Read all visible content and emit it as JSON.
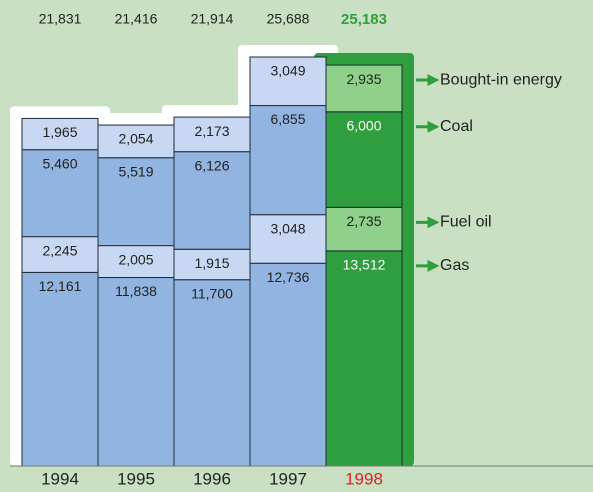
{
  "chart_data": {
    "type": "stacked_bar",
    "categories": [
      "1994",
      "1995",
      "1996",
      "1997",
      "1998"
    ],
    "category_colors": [
      "#222222",
      "#222222",
      "#222222",
      "#222222",
      "#d9232a"
    ],
    "totals": [
      21831,
      21416,
      21914,
      25688,
      25183
    ],
    "total_labels": [
      "21,831",
      "21,416",
      "21,914",
      "25,688",
      "25,183"
    ],
    "total_colors": [
      "#222222",
      "#222222",
      "#222222",
      "#222222",
      "#2e9e3e"
    ],
    "series": [
      {
        "name": "Gas",
        "colors": [
          "#92b4e0",
          "#92b4e0",
          "#92b4e0",
          "#92b4e0",
          "#2e9e3e"
        ],
        "values": [
          12161,
          11838,
          11700,
          12736,
          13512
        ],
        "value_labels": [
          "12,161",
          "11,838",
          "11,700",
          "12,736",
          "13,512"
        ]
      },
      {
        "name": "Fuel oil",
        "colors": [
          "#c8d8f2",
          "#c8d8f2",
          "#c8d8f2",
          "#c8d8f2",
          "#8fd08a"
        ],
        "values": [
          2245,
          2005,
          1915,
          3048,
          2735
        ],
        "value_labels": [
          "2,245",
          "2,005",
          "1,915",
          "3,048",
          "2,735"
        ]
      },
      {
        "name": "Coal",
        "colors": [
          "#92b4e0",
          "#92b4e0",
          "#92b4e0",
          "#92b4e0",
          "#2e9e3e"
        ],
        "values": [
          5460,
          5519,
          6126,
          6855,
          6000
        ],
        "value_labels": [
          "5,460",
          "5,519",
          "6,126",
          "6,855",
          "6,000"
        ]
      },
      {
        "name": "Bought-in energy",
        "colors": [
          "#c8d8f2",
          "#c8d8f2",
          "#c8d8f2",
          "#c8d8f2",
          "#8fd08a"
        ],
        "values": [
          1965,
          2054,
          2173,
          3049,
          2935
        ],
        "value_labels": [
          "1,965",
          "2,054",
          "2,173",
          "3,049",
          "2,935"
        ]
      }
    ]
  }
}
